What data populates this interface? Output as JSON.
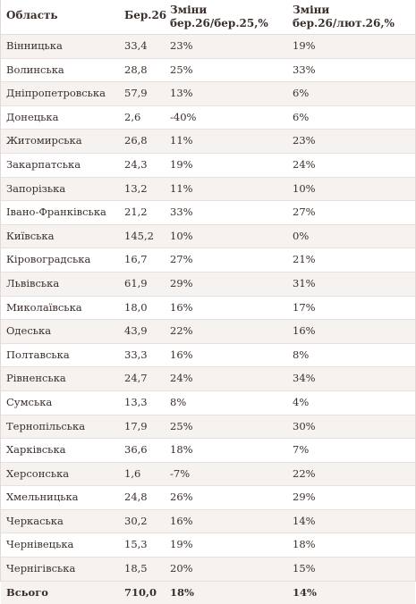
{
  "header": {
    "region": "Область",
    "mar26": "Бер.26",
    "yoy_line1": "Зміни",
    "yoy_line2": "бер.26/бер.25,%",
    "mom_line1": "Зміни",
    "mom_line2": "бер.26/лют.26,%"
  },
  "rows": [
    {
      "region": "Вінницька",
      "value": "33,4",
      "yoy": "23%",
      "mom": "19%"
    },
    {
      "region": "Волинська",
      "value": "28,8",
      "yoy": "25%",
      "mom": "33%"
    },
    {
      "region": "Дніпропетровська",
      "value": "57,9",
      "yoy": "13%",
      "mom": "6%"
    },
    {
      "region": "Донецька",
      "value": "2,6",
      "yoy": "-40%",
      "mom": "6%"
    },
    {
      "region": "Житомирська",
      "value": "26,8",
      "yoy": "11%",
      "mom": "23%"
    },
    {
      "region": "Закарпатська",
      "value": "24,3",
      "yoy": "19%",
      "mom": "24%"
    },
    {
      "region": "Запорізька",
      "value": "13,2",
      "yoy": "11%",
      "mom": "10%"
    },
    {
      "region": "Івано-Франківська",
      "value": "21,2",
      "yoy": "33%",
      "mom": "27%"
    },
    {
      "region": "Київська",
      "value": "145,2",
      "yoy": "10%",
      "mom": "0%"
    },
    {
      "region": "Кіровоградська",
      "value": "16,7",
      "yoy": "27%",
      "mom": "21%"
    },
    {
      "region": "Львівська",
      "value": "61,9",
      "yoy": "29%",
      "mom": "31%"
    },
    {
      "region": "Миколаївська",
      "value": "18,0",
      "yoy": "16%",
      "mom": "17%"
    },
    {
      "region": "Одеська",
      "value": "43,9",
      "yoy": "22%",
      "mom": "16%"
    },
    {
      "region": "Полтавська",
      "value": "33,3",
      "yoy": "16%",
      "mom": "8%"
    },
    {
      "region": "Рівненська",
      "value": "24,7",
      "yoy": "24%",
      "mom": "34%"
    },
    {
      "region": "Сумська",
      "value": "13,3",
      "yoy": "8%",
      "mom": "4%"
    },
    {
      "region": "Тернопільська",
      "value": "17,9",
      "yoy": "25%",
      "mom": "30%"
    },
    {
      "region": "Харківська",
      "value": "36,6",
      "yoy": "18%",
      "mom": "7%"
    },
    {
      "region": "Херсонська",
      "value": "1,6",
      "yoy": "-7%",
      "mom": "22%"
    },
    {
      "region": "Хмельницька",
      "value": "24,8",
      "yoy": "26%",
      "mom": "29%"
    },
    {
      "region": "Черкаська",
      "value": "30,2",
      "yoy": "16%",
      "mom": "14%"
    },
    {
      "region": "Чернівецька",
      "value": "15,3",
      "yoy": "19%",
      "mom": "18%"
    },
    {
      "region": "Чернігівська",
      "value": "18,5",
      "yoy": "20%",
      "mom": "15%"
    }
  ],
  "total": {
    "region": "Всього",
    "value": "710,0",
    "yoy": "18%",
    "mom": "14%"
  }
}
